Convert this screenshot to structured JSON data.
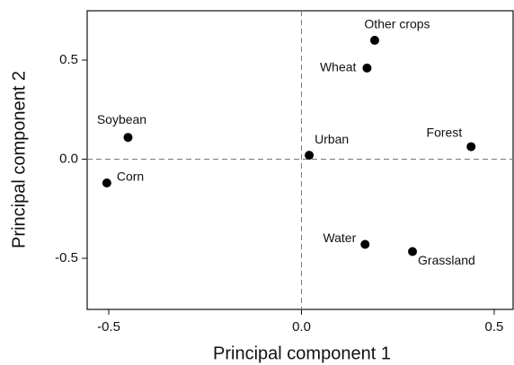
{
  "chart_data": {
    "type": "scatter",
    "x_label": "Principal component 1",
    "y_label": "Principal component 2",
    "labels": [
      "Other crops",
      "Wheat",
      "Soybean",
      "Urban",
      "Forest",
      "Corn",
      "Water",
      "Grassland"
    ],
    "x": [
      0.19,
      0.17,
      -0.45,
      0.02,
      0.44,
      -0.505,
      0.165,
      0.288
    ],
    "values": [
      0.6,
      0.46,
      0.11,
      0.02,
      0.063,
      -0.12,
      -0.43,
      -0.466
    ],
    "color": "#000000",
    "xlim": [
      -0.556,
      0.549
    ],
    "ylim": [
      -0.758,
      0.749
    ],
    "xticks": [
      {
        "value": -0.5,
        "label": "-0.5"
      },
      {
        "value": 0,
        "label": "0.0"
      },
      {
        "value": 0.5,
        "label": "0.5"
      }
    ],
    "yticks": [
      {
        "value": -0.5,
        "label": "-0.5"
      },
      {
        "value": 0,
        "label": "0.0"
      },
      {
        "value": 0.5,
        "label": "0.5"
      }
    ]
  }
}
